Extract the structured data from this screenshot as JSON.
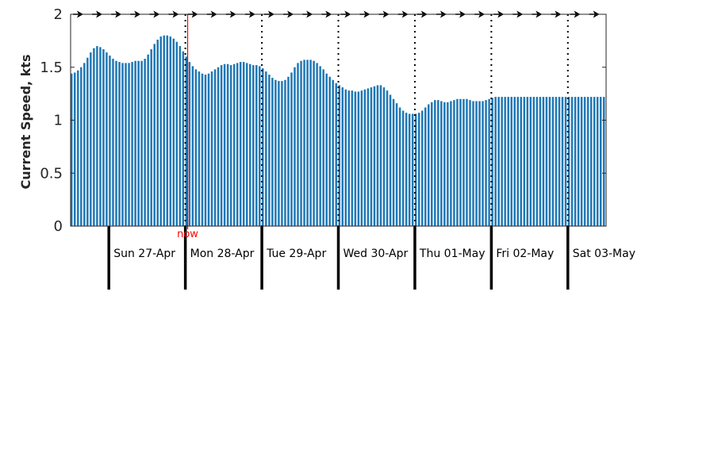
{
  "chart_data": {
    "type": "bar",
    "ylabel": "Current Speed, kts",
    "ylim": [
      0,
      2
    ],
    "yticks": [
      "0",
      "0.5",
      "1",
      "1.5",
      "2"
    ],
    "bar_color": "#1f77b4",
    "now_color": "#ff0000",
    "now_label": "now",
    "now_position_days": 1.03,
    "days": [
      "Sun 27-Apr",
      "Mon 28-Apr",
      "Tue 29-Apr",
      "Wed 30-Apr",
      "Thu 01-May",
      "Fri 02-May",
      "Sat 03-May"
    ],
    "start_offset_days": -0.5,
    "end_offset_days": 6.5,
    "samples_per_day": 24,
    "speed_kts": [
      1.44,
      1.45,
      1.47,
      1.5,
      1.54,
      1.59,
      1.64,
      1.68,
      1.7,
      1.69,
      1.67,
      1.64,
      1.61,
      1.58,
      1.56,
      1.55,
      1.54,
      1.54,
      1.54,
      1.55,
      1.56,
      1.56,
      1.56,
      1.58,
      1.62,
      1.67,
      1.72,
      1.76,
      1.79,
      1.8,
      1.8,
      1.79,
      1.77,
      1.74,
      1.7,
      1.65,
      1.6,
      1.55,
      1.51,
      1.48,
      1.46,
      1.44,
      1.43,
      1.44,
      1.46,
      1.48,
      1.5,
      1.52,
      1.53,
      1.53,
      1.52,
      1.53,
      1.54,
      1.55,
      1.55,
      1.54,
      1.53,
      1.52,
      1.52,
      1.51,
      1.49,
      1.46,
      1.43,
      1.4,
      1.38,
      1.37,
      1.37,
      1.38,
      1.41,
      1.45,
      1.5,
      1.54,
      1.56,
      1.57,
      1.57,
      1.57,
      1.56,
      1.54,
      1.51,
      1.48,
      1.44,
      1.41,
      1.38,
      1.35,
      1.33,
      1.31,
      1.29,
      1.28,
      1.28,
      1.27,
      1.27,
      1.28,
      1.29,
      1.3,
      1.31,
      1.32,
      1.33,
      1.33,
      1.31,
      1.28,
      1.24,
      1.2,
      1.16,
      1.12,
      1.09,
      1.07,
      1.06,
      1.06,
      1.06,
      1.07,
      1.09,
      1.12,
      1.15,
      1.17,
      1.19,
      1.19,
      1.18,
      1.17,
      1.17,
      1.18,
      1.19,
      1.2,
      1.2,
      1.2,
      1.2,
      1.19,
      1.18,
      1.18,
      1.18,
      1.18,
      1.19,
      1.2,
      1.21,
      1.22,
      1.22,
      1.22,
      1.22,
      1.22,
      1.22,
      1.22,
      1.22,
      1.22,
      1.22,
      1.22,
      1.22,
      1.22,
      1.22,
      1.22,
      1.22,
      1.22,
      1.22,
      1.22,
      1.22,
      1.22,
      1.22,
      1.22,
      1.22,
      1.22,
      1.22,
      1.22,
      1.22,
      1.22,
      1.22,
      1.22,
      1.22,
      1.22,
      1.22,
      1.22
    ],
    "grid": false,
    "legend": "none"
  }
}
